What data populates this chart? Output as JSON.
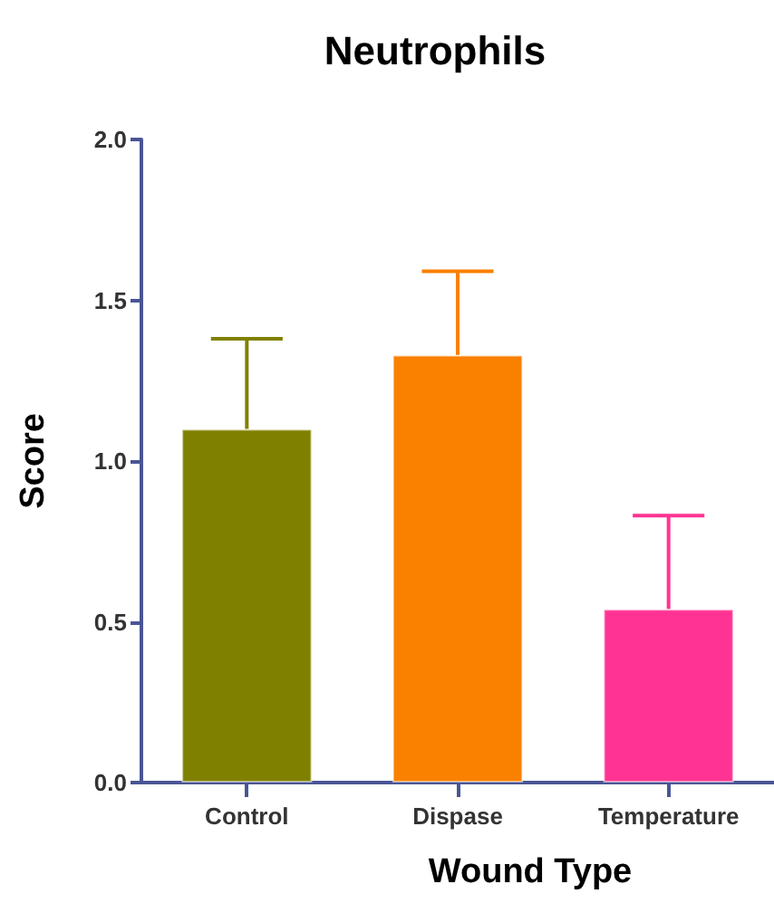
{
  "chart_data": {
    "type": "bar",
    "title": "Neutrophils",
    "xlabel": "Wound Type",
    "ylabel": "Score",
    "categories": [
      "Control",
      "Dispase",
      "Temperature"
    ],
    "values": [
      1.1,
      1.33,
      0.54
    ],
    "colors": [
      "#808000",
      "#fa8000",
      "#ff3393"
    ],
    "errors": [
      [
        1.1,
        1.38
      ],
      [
        1.33,
        1.59
      ],
      [
        0.54,
        0.83
      ]
    ],
    "ylim": [
      0,
      2.0
    ],
    "yticks": [
      {
        "value": 0,
        "label": "0.0"
      },
      {
        "value": 0.5,
        "label": "0.5"
      },
      {
        "value": 1,
        "label": "1.0"
      },
      {
        "value": 1.5,
        "label": "1.5"
      },
      {
        "value": 2,
        "label": "2.0"
      }
    ],
    "grid": false
  }
}
